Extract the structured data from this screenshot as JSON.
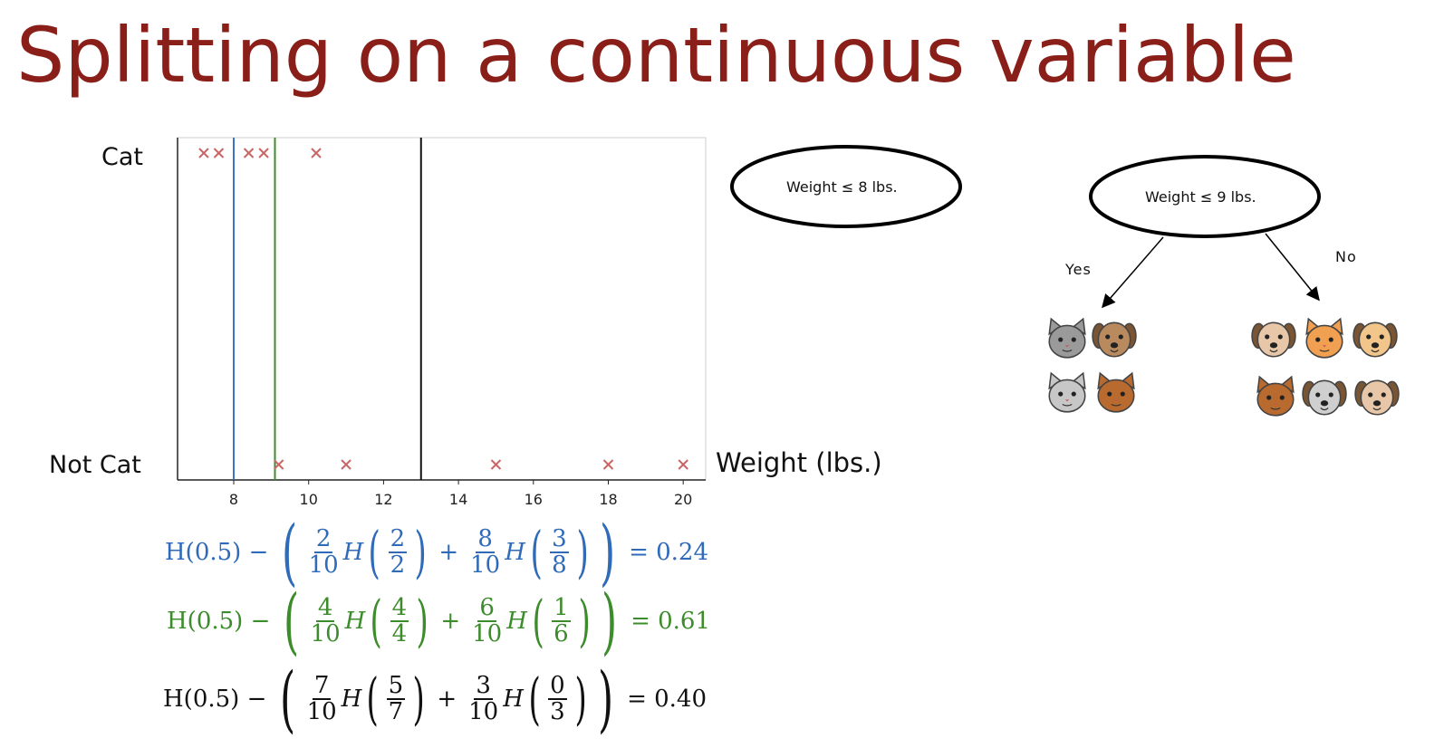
{
  "title": "Splitting on a continuous variable",
  "chart_data": {
    "type": "scatter",
    "xlabel": "Weight (lbs.)",
    "ylabel": "",
    "y_categories": [
      "Cat",
      "Not Cat"
    ],
    "xlim": [
      6.5,
      20.6
    ],
    "xticks": [
      8,
      10,
      12,
      14,
      16,
      18,
      20
    ],
    "tick_labels": [
      "8",
      "10",
      "12",
      "14",
      "16",
      "18",
      "20"
    ],
    "series": [
      {
        "name": "",
        "class": "Cat",
        "x": [
          7.2,
          7.6,
          8.4,
          8.8,
          10.2
        ]
      },
      {
        "name": "",
        "class": "Not Cat",
        "x": [
          9.2,
          11.0,
          15.0,
          18.0,
          20.0
        ]
      }
    ],
    "split_lines": [
      {
        "x": 8,
        "color": "#3a72c2"
      },
      {
        "x": 9.1,
        "color": "#3d8c2b"
      },
      {
        "x": 13,
        "color": "#111111"
      }
    ],
    "marker_color": "#c96565"
  },
  "equations": [
    {
      "color": "#2f6bb8",
      "lead": "H(0.5) −",
      "f1_num": "2",
      "f1_den": "10",
      "h1_num": "2",
      "h1_den": "2",
      "plus": "+",
      "f2_num": "8",
      "f2_den": "10",
      "h2_num": "3",
      "h2_den": "8",
      "result": "= 0.24"
    },
    {
      "color": "#3d8c2b",
      "lead": "H(0.5) −",
      "f1_num": "4",
      "f1_den": "10",
      "h1_num": "4",
      "h1_den": "4",
      "plus": "+",
      "f2_num": "6",
      "f2_den": "10",
      "h2_num": "1",
      "h2_den": "6",
      "result": "= 0.61"
    },
    {
      "color": "#111111",
      "lead": "H(0.5) −",
      "f1_num": "7",
      "f1_den": "10",
      "h1_num": "5",
      "h1_den": "7",
      "plus": "+",
      "f2_num": "3",
      "f2_den": "10",
      "h2_num": "0",
      "h2_den": "3",
      "result": "= 0.40"
    }
  ],
  "h_symbol": "H",
  "tree1": {
    "label": "Weight ≤ 8 lbs."
  },
  "tree2": {
    "label": "Weight ≤ 9 lbs.",
    "yes": "Yes",
    "no": "No"
  },
  "pets": {
    "left": [
      "cat-face-icon",
      "dog-face-icon",
      "cat-face-icon",
      "cat-face-icon"
    ],
    "right": [
      "dog-face-icon",
      "cat-face-icon",
      "dog-face-icon",
      "cat-face-icon",
      "dog-face-icon",
      "dog-face-icon"
    ]
  }
}
